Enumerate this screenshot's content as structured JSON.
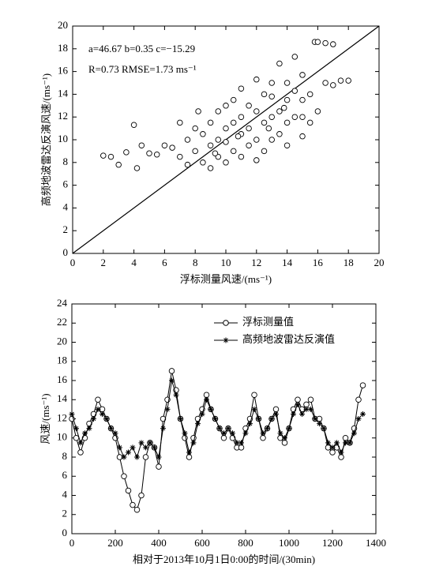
{
  "chart_data": [
    {
      "type": "scatter",
      "annotations": [
        "a=46.67  b=0.35 c=−15.29",
        "R=0.73  RMSE=1.73 ms⁻¹"
      ],
      "x_label": "浮标测量风速/(ms⁻¹)",
      "y_label": "高频地波雷达反演风速/(ms⁻¹)",
      "xlim": [
        0,
        20
      ],
      "ylim": [
        0,
        20
      ],
      "xticks": [
        0,
        2,
        4,
        6,
        8,
        10,
        12,
        14,
        16,
        18,
        20
      ],
      "yticks": [
        0,
        2,
        4,
        6,
        8,
        10,
        12,
        14,
        16,
        18,
        20
      ],
      "color": "#000000",
      "x": [
        2,
        2.5,
        3,
        3.5,
        4,
        4.2,
        4.5,
        5,
        5.5,
        6,
        6.5,
        7,
        7,
        7.5,
        7.5,
        8,
        8,
        8.2,
        8.5,
        8.5,
        9,
        9,
        9,
        9.5,
        9.5,
        9.5,
        10,
        10,
        10,
        10,
        10.5,
        10.5,
        10.5,
        11,
        11,
        11,
        11,
        11.5,
        11.5,
        11.5,
        12,
        12,
        12,
        12,
        12.5,
        12.5,
        12.5,
        13,
        13,
        13,
        13,
        13.5,
        13.5,
        13.5,
        14,
        14,
        14,
        14,
        14.5,
        14.5,
        14.5,
        15,
        15,
        15,
        15,
        15.5,
        15.5,
        15.8,
        16,
        16,
        16.5,
        16.5,
        17,
        17,
        17.5,
        18,
        9.3,
        10.8,
        12.8,
        13.8
      ],
      "values": [
        8.6,
        8.5,
        7.8,
        8.9,
        11.3,
        7.5,
        9.5,
        8.8,
        8.7,
        9.5,
        9.3,
        11.5,
        8.5,
        10,
        7.8,
        9,
        11,
        12.5,
        8,
        10.5,
        7.5,
        9.5,
        11.5,
        8.5,
        10,
        12.5,
        8,
        9.8,
        11,
        13,
        9,
        11.5,
        13.5,
        8.5,
        10.5,
        12,
        14.5,
        9.5,
        11,
        13,
        8.2,
        10,
        12.5,
        15.3,
        9,
        11.5,
        14,
        10,
        12,
        13.8,
        15,
        10.5,
        12.5,
        16.7,
        9.5,
        11.5,
        13.5,
        15,
        12,
        14.3,
        17.3,
        10.3,
        12,
        13.5,
        15.7,
        11.5,
        14,
        18.6,
        12.5,
        18.6,
        15,
        18.5,
        14.8,
        18.4,
        15.2,
        15.2,
        8.8,
        10.3,
        11,
        12.8
      ]
    },
    {
      "type": "line",
      "x_label": "相对于2013年10月1日0:00的时间/(30min)",
      "y_label": "风速/(ms⁻¹)",
      "xlim": [
        0,
        1400
      ],
      "ylim": [
        0,
        24
      ],
      "xticks": [
        0,
        200,
        400,
        600,
        800,
        1000,
        1200,
        1400
      ],
      "yticks": [
        0,
        2,
        4,
        6,
        8,
        10,
        12,
        14,
        16,
        18,
        20,
        22,
        24
      ],
      "legend": "top",
      "x": [
        0,
        20,
        40,
        60,
        80,
        100,
        120,
        140,
        160,
        180,
        200,
        220,
        240,
        260,
        280,
        300,
        320,
        340,
        360,
        380,
        400,
        420,
        440,
        460,
        480,
        500,
        520,
        540,
        560,
        580,
        600,
        620,
        640,
        660,
        680,
        700,
        720,
        740,
        760,
        780,
        800,
        820,
        840,
        860,
        880,
        900,
        920,
        940,
        960,
        980,
        1000,
        1020,
        1040,
        1060,
        1080,
        1100,
        1120,
        1140,
        1160,
        1180,
        1200,
        1220,
        1240,
        1260,
        1280,
        1300,
        1320,
        1340
      ],
      "series": [
        {
          "name": "浮标测量值",
          "color": "#000000",
          "marker": "circle",
          "values": [
            12,
            10,
            8.5,
            10,
            11.5,
            12.5,
            14,
            13,
            12,
            11,
            10,
            8,
            6,
            4.5,
            3,
            2.5,
            4,
            8,
            9.5,
            9,
            7,
            12,
            14,
            17,
            15,
            12,
            10,
            8,
            10,
            12,
            13,
            14.5,
            13,
            12,
            11,
            10,
            11,
            10,
            9,
            9,
            11,
            12,
            14.5,
            12,
            10,
            11,
            12,
            13,
            10,
            9.5,
            11,
            13,
            14,
            13,
            13.5,
            14,
            12,
            12,
            11,
            9,
            8.5,
            9,
            8,
            10,
            9.5,
            11,
            14,
            15.5
          ]
        },
        {
          "name": "高频地波雷达反演值",
          "color": "#000000",
          "marker": "star",
          "values": [
            12.5,
            11,
            9.5,
            10.5,
            11,
            12,
            13,
            12.5,
            12,
            11,
            10.5,
            9,
            8,
            8.5,
            9,
            8,
            9.5,
            9,
            9.5,
            9,
            8,
            11,
            13,
            16,
            14.5,
            12,
            10.5,
            8.5,
            9.5,
            11.5,
            12.5,
            14,
            13,
            12,
            11,
            10.5,
            11,
            10.5,
            9.5,
            9.5,
            10.5,
            11.5,
            13,
            12,
            10.5,
            11,
            12,
            12.5,
            10.5,
            10,
            11,
            12.5,
            13.5,
            12.5,
            13,
            13,
            12,
            11.5,
            11,
            9.5,
            9,
            9.5,
            8.5,
            9.5,
            9.5,
            10.5,
            12,
            12.5
          ]
        }
      ]
    }
  ]
}
